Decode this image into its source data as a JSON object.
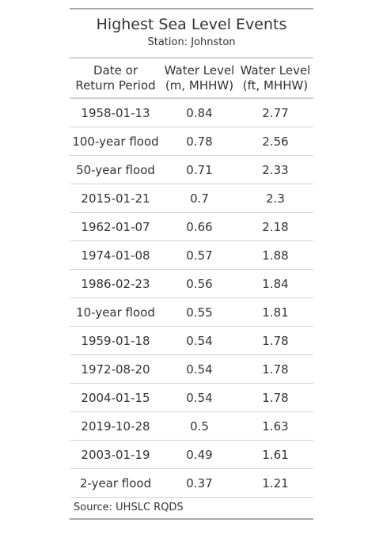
{
  "title": "Highest Sea Level Events",
  "subtitle": "Station: Johnston",
  "columns": {
    "date": [
      "Date or",
      "Return Period"
    ],
    "water_m": [
      "Water Level",
      "(m, MHHW)"
    ],
    "water_ft": [
      "Water Level",
      "(ft, MHHW)"
    ]
  },
  "rows": [
    {
      "date": "1958-01-13",
      "m": "0.84",
      "ft": "2.77"
    },
    {
      "date": "100-year flood",
      "m": "0.78",
      "ft": "2.56"
    },
    {
      "date": "50-year flood",
      "m": "0.71",
      "ft": "2.33"
    },
    {
      "date": "2015-01-21",
      "m": "0.7",
      "ft": "2.3"
    },
    {
      "date": "1962-01-07",
      "m": "0.66",
      "ft": "2.18"
    },
    {
      "date": "1974-01-08",
      "m": "0.57",
      "ft": "1.88"
    },
    {
      "date": "1986-02-23",
      "m": "0.56",
      "ft": "1.84"
    },
    {
      "date": "10-year flood",
      "m": "0.55",
      "ft": "1.81"
    },
    {
      "date": "1959-01-18",
      "m": "0.54",
      "ft": "1.78"
    },
    {
      "date": "1972-08-20",
      "m": "0.54",
      "ft": "1.78"
    },
    {
      "date": "2004-01-15",
      "m": "0.54",
      "ft": "1.78"
    },
    {
      "date": "2019-10-28",
      "m": "0.5",
      "ft": "1.63"
    },
    {
      "date": "2003-01-19",
      "m": "0.49",
      "ft": "1.61"
    },
    {
      "date": "2-year flood",
      "m": "0.37",
      "ft": "1.21"
    }
  ],
  "source": "Source: UHSLC RQDS"
}
